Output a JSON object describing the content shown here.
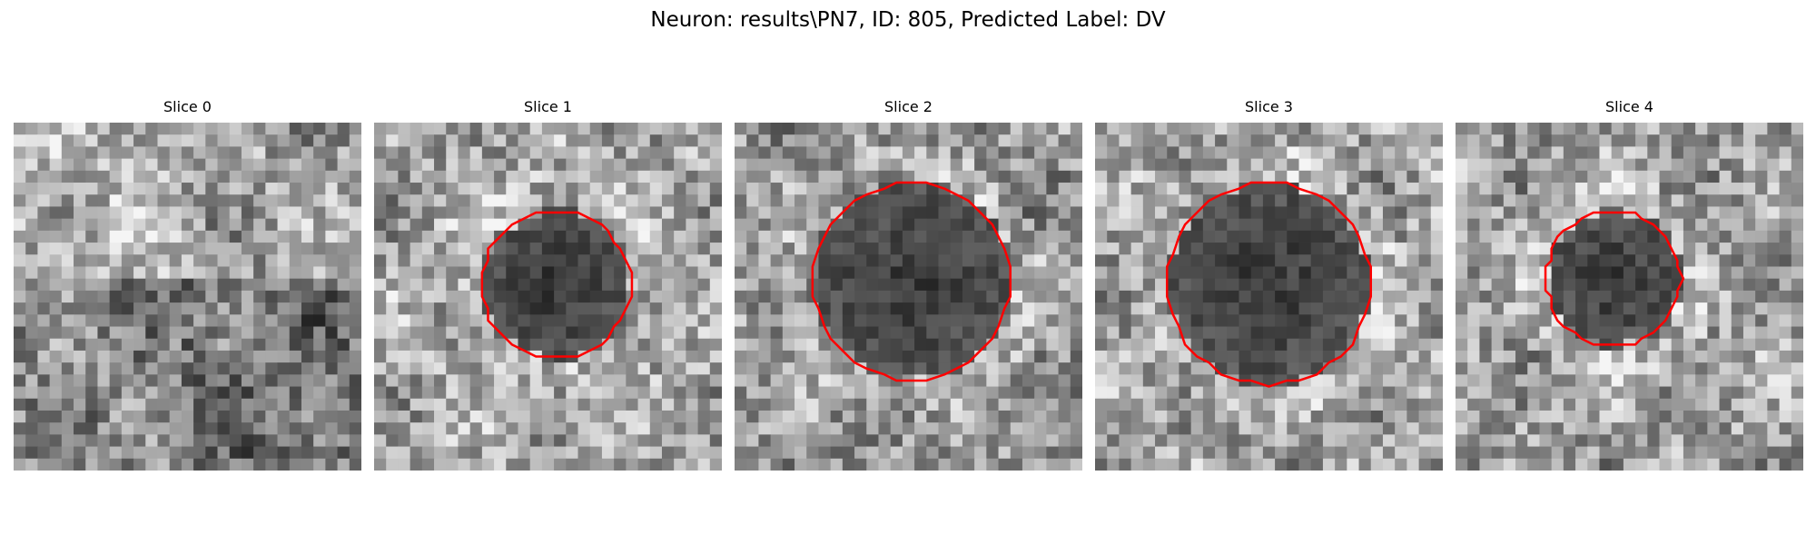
{
  "figure": {
    "title": "Neuron: results\\PN7, ID: 805, Predicted Label: DV",
    "contour_color": "#ff0000",
    "slices": [
      {
        "title": "Slice 0",
        "has_contour": false,
        "seed": 11
      },
      {
        "title": "Slice 1",
        "has_contour": true,
        "seed": 23
      },
      {
        "title": "Slice 2",
        "has_contour": true,
        "seed": 37
      },
      {
        "title": "Slice 3",
        "has_contour": true,
        "seed": 51
      },
      {
        "title": "Slice 4",
        "has_contour": true,
        "seed": 67
      }
    ]
  }
}
